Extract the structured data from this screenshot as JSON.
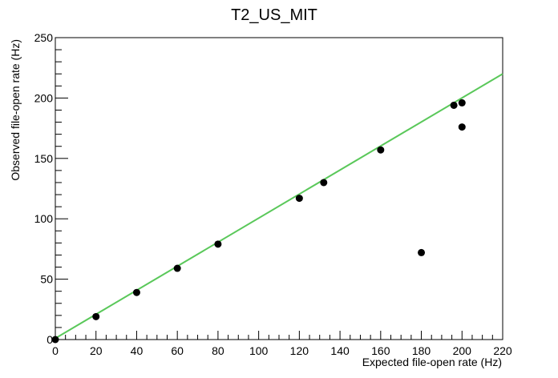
{
  "chart_data": {
    "type": "scatter",
    "title": "T2_US_MIT",
    "xlabel": "Expected file-open rate (Hz)",
    "ylabel": "Observed file-open rate (Hz)",
    "xlim": [
      0,
      220
    ],
    "ylim": [
      0,
      250
    ],
    "x_ticks": [
      0,
      20,
      40,
      60,
      80,
      100,
      120,
      140,
      160,
      180,
      200,
      220
    ],
    "y_ticks": [
      0,
      50,
      100,
      150,
      200,
      250
    ],
    "grid": false,
    "points": [
      {
        "x": 0,
        "y": 0
      },
      {
        "x": 20,
        "y": 19
      },
      {
        "x": 40,
        "y": 39
      },
      {
        "x": 60,
        "y": 59
      },
      {
        "x": 80,
        "y": 79
      },
      {
        "x": 120,
        "y": 117
      },
      {
        "x": 132,
        "y": 130
      },
      {
        "x": 160,
        "y": 157
      },
      {
        "x": 180,
        "y": 72
      },
      {
        "x": 196,
        "y": 194
      },
      {
        "x": 200,
        "y": 196
      },
      {
        "x": 200,
        "y": 176
      }
    ],
    "fit_line": {
      "x": [
        0,
        220
      ],
      "y": [
        1,
        220
      ]
    },
    "colors": {
      "points": "#000000",
      "fit_line": "#5ac85a",
      "axes": "#000000"
    }
  }
}
